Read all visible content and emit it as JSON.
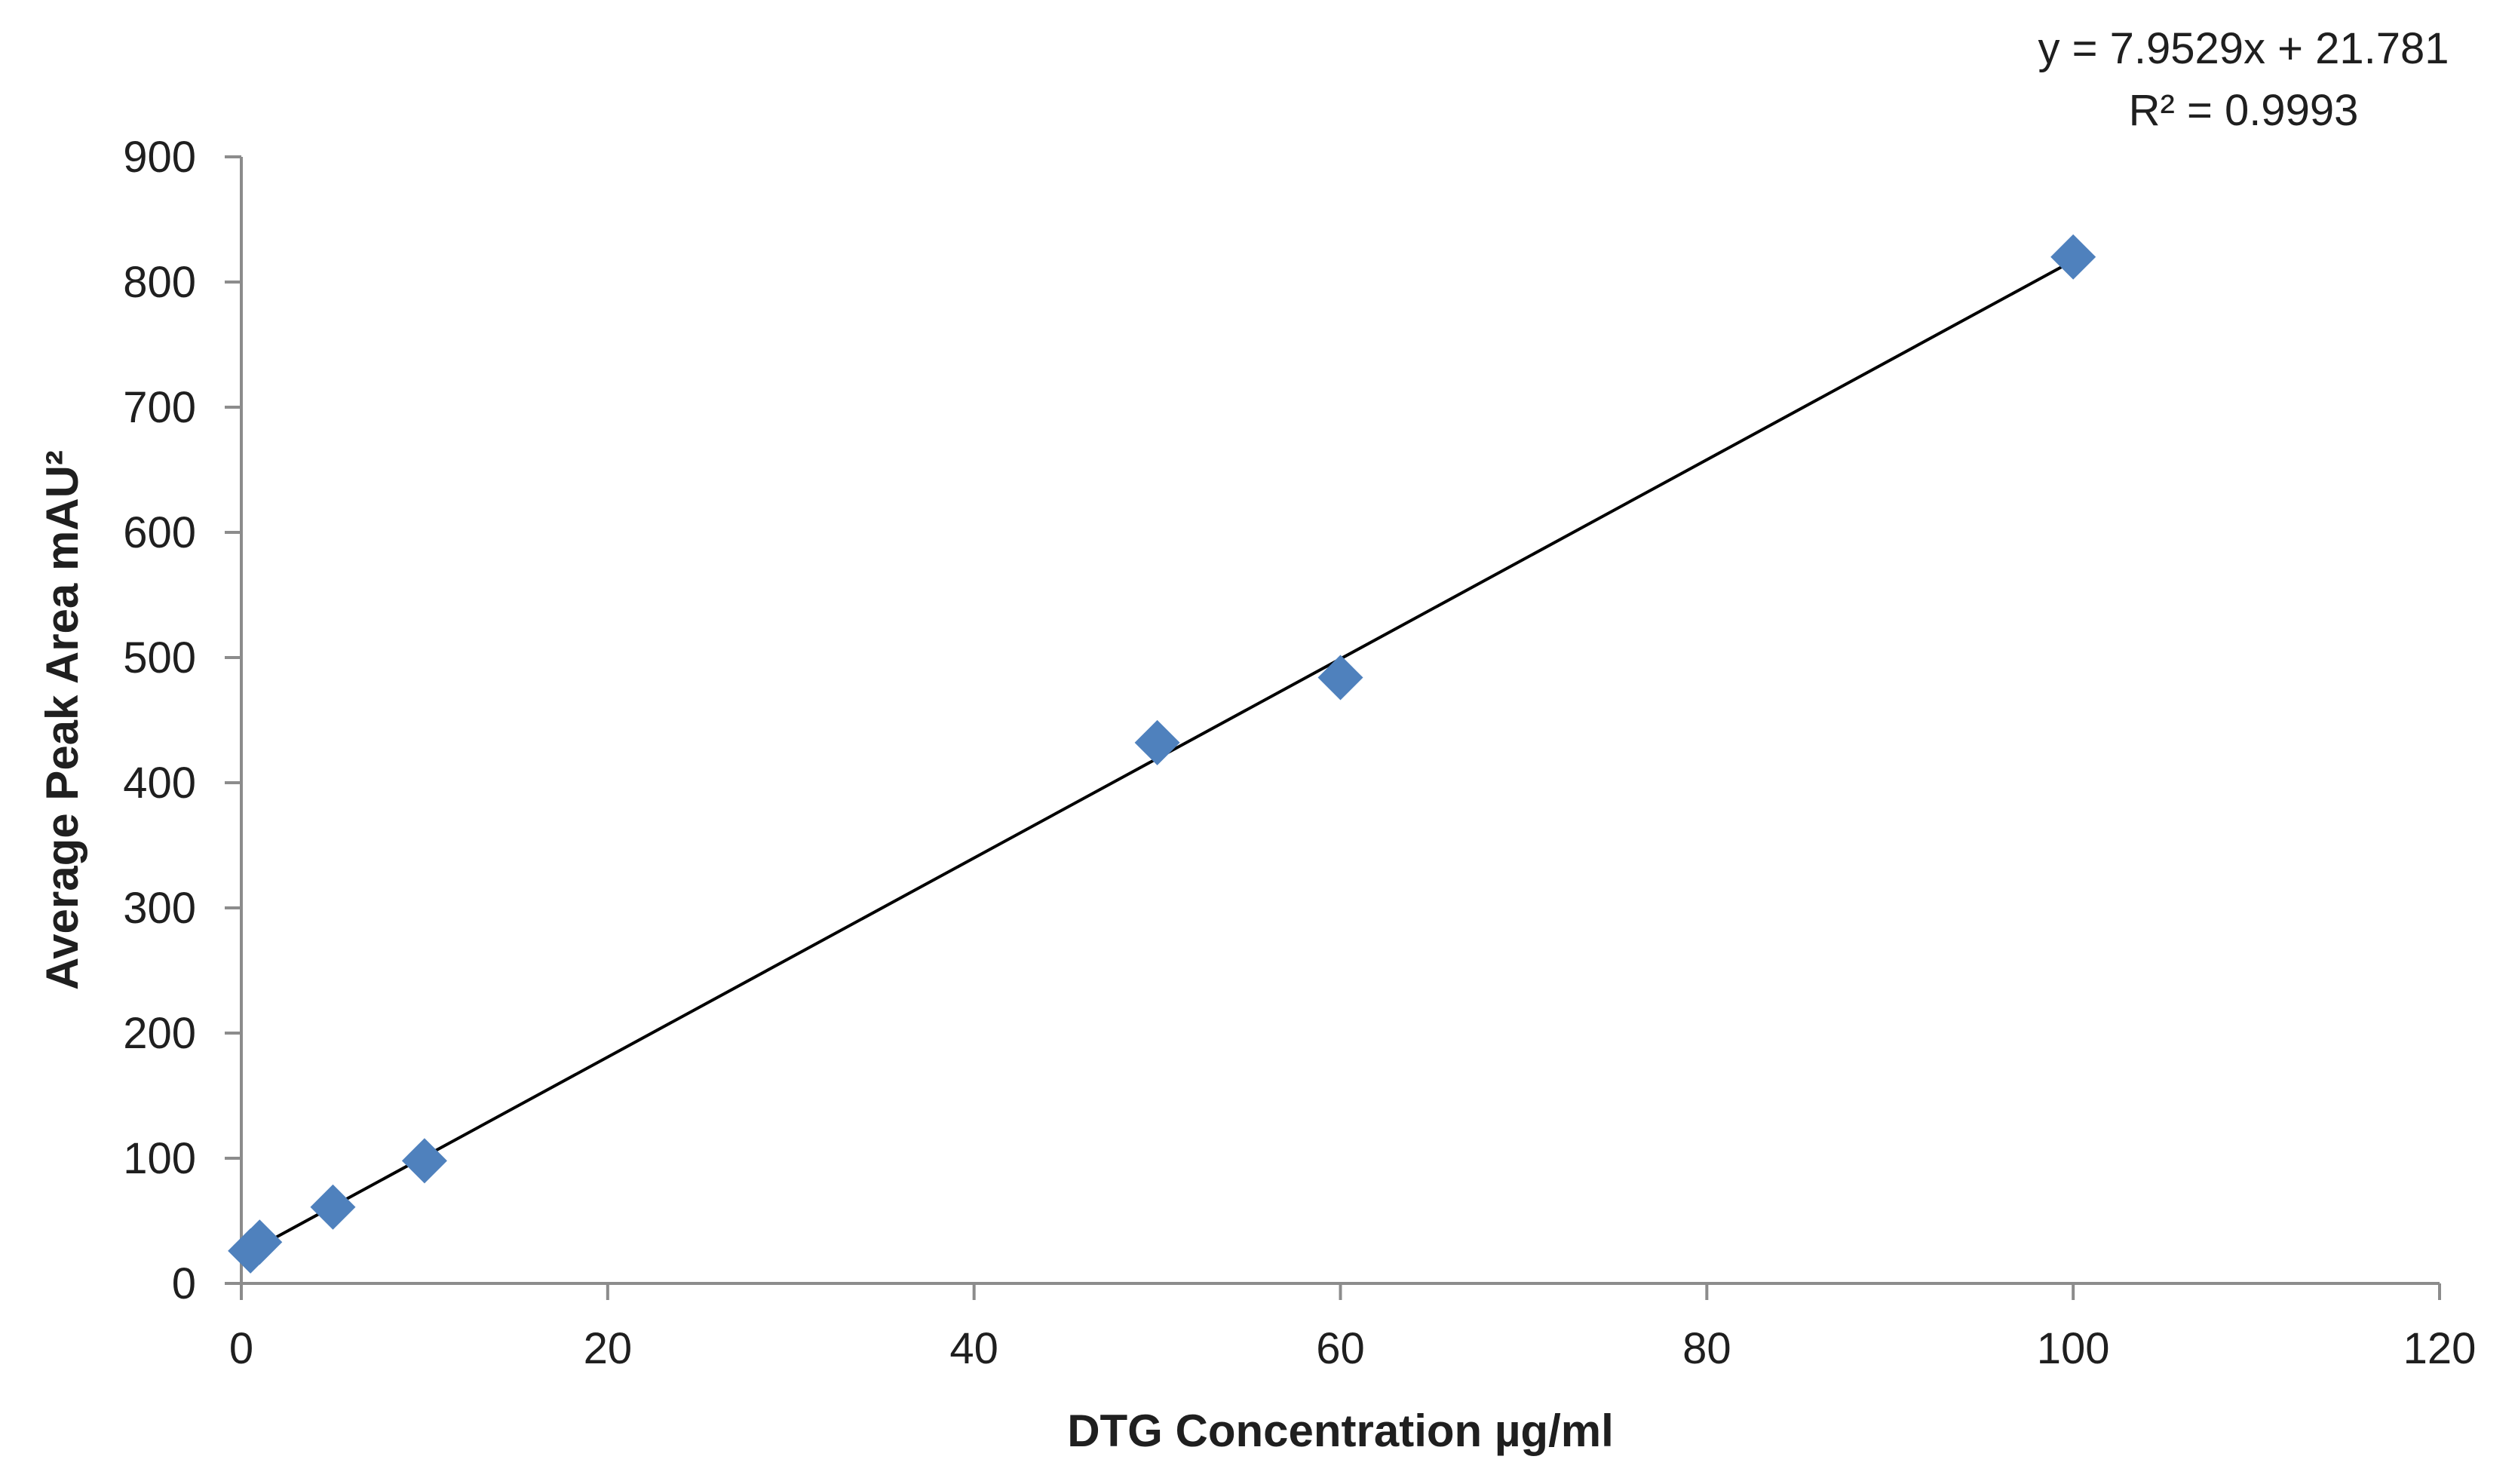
{
  "chart_data": {
    "type": "scatter",
    "title": "",
    "xlabel": "DTG Concentration µg/ml",
    "ylabel": "Average Peak Area mAU²",
    "xlim": [
      0,
      120
    ],
    "ylim": [
      0,
      900
    ],
    "x_ticks": [
      0,
      20,
      40,
      60,
      80,
      100,
      120
    ],
    "y_ticks": [
      0,
      100,
      200,
      300,
      400,
      500,
      600,
      700,
      800,
      900
    ],
    "grid": false,
    "legend": false,
    "marker": "diamond",
    "marker_color": "#4f81bd",
    "trendline_color": "#000000",
    "series": [
      {
        "x": [
          0.5,
          1,
          5,
          10,
          50,
          60,
          100
        ],
        "y": [
          26,
          33,
          61,
          98,
          432,
          484,
          820
        ]
      }
    ],
    "trendline": {
      "type": "linear",
      "slope": 7.9529,
      "intercept": 21.781,
      "x_range": [
        0.5,
        100
      ]
    },
    "annotations": {
      "equation": "y = 7.9529x + 21.781",
      "r_squared": "R² = 0.9993"
    }
  }
}
